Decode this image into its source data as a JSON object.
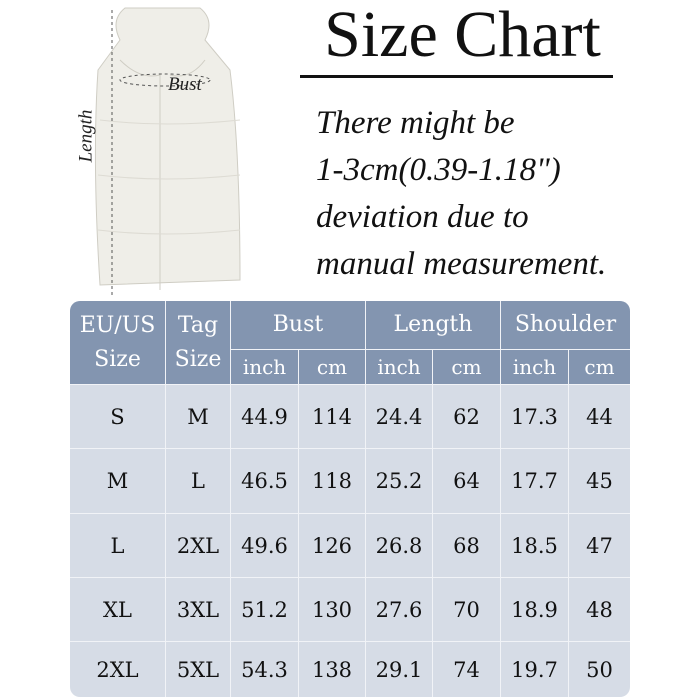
{
  "title": "Size Chart",
  "note": [
    "There might be",
    "1-3cm(0.39-1.18\")",
    "deviation due to",
    "manual measurement."
  ],
  "vest": {
    "bust_label": "Bust",
    "length_label": "Length"
  },
  "colors": {
    "header": "#8395b0",
    "body": "#d6dce6"
  },
  "table": {
    "headers": {
      "eu_us": "EU/US Size",
      "tag": "Tag Size",
      "bust": "Bust",
      "length": "Length",
      "shoulder": "Shoulder",
      "inch": "inch",
      "cm": "cm"
    },
    "rows": [
      [
        "S",
        "M",
        "44.9",
        "114",
        "24.4",
        "62",
        "17.3",
        "44"
      ],
      [
        "M",
        "L",
        "46.5",
        "118",
        "25.2",
        "64",
        "17.7",
        "45"
      ],
      [
        "L",
        "2XL",
        "49.6",
        "126",
        "26.8",
        "68",
        "18.5",
        "47"
      ],
      [
        "XL",
        "3XL",
        "51.2",
        "130",
        "27.6",
        "70",
        "18.9",
        "48"
      ],
      [
        "2XL",
        "5XL",
        "54.3",
        "138",
        "29.1",
        "74",
        "19.7",
        "50"
      ]
    ]
  }
}
